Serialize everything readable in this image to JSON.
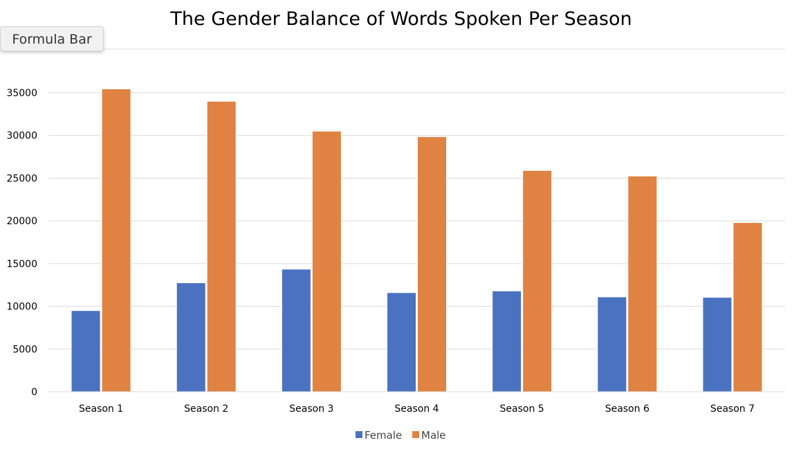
{
  "tooltip": {
    "label": "Formula Bar"
  },
  "chart_data": {
    "type": "bar",
    "title": "The Gender Balance of Words Spoken Per Season",
    "categories": [
      "Season 1",
      "Season 2",
      "Season 3",
      "Season 4",
      "Season 5",
      "Season 6",
      "Season 7"
    ],
    "series": [
      {
        "name": "Female",
        "color": "#4a72c0",
        "values": [
          9500,
          12750,
          14350,
          11600,
          11800,
          11100,
          11050
        ]
      },
      {
        "name": "Male",
        "color": "#e08242",
        "values": [
          35450,
          34000,
          30500,
          29850,
          25900,
          25250,
          19800
        ]
      }
    ],
    "yticks": [
      0,
      5000,
      10000,
      15000,
      20000,
      25000,
      30000,
      35000
    ],
    "ylim": [
      0,
      35000
    ],
    "grid": true,
    "legend": "bottom-center",
    "xlabel": "",
    "ylabel": ""
  }
}
